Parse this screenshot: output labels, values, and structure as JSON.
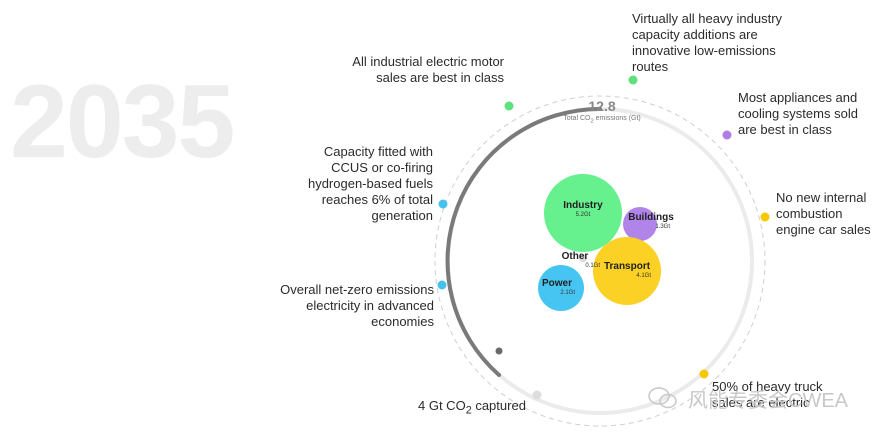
{
  "year": "2035",
  "total": {
    "value": "12.8",
    "caption_pre": "Total CO",
    "caption_sub": "2",
    "caption_post": " emissions (Gt)"
  },
  "milestones": [
    {
      "id": "heavy-industry",
      "text": "Virtually all heavy industry capacity additions are innovative low-emissions routes",
      "color": "#5ee07c"
    },
    {
      "id": "appliances",
      "text": "Most appliances and cooling systems sold are best in class",
      "color": "#b07de8"
    },
    {
      "id": "ice-cars",
      "text": "No new internal combustion engine car sales",
      "color": "#f5c800"
    },
    {
      "id": "heavy-truck",
      "text": "50% of heavy truck sales are electric",
      "color": "#f5c800"
    },
    {
      "id": "co2-captured",
      "text_pre": "4 Gt CO",
      "text_sub": "2",
      "text_post": " captured",
      "color": "#dddddd"
    },
    {
      "id": "net-zero-electricity",
      "text": "Overall net-zero emissions electricity in advanced economies",
      "color": "#47c1f0"
    },
    {
      "id": "ccus",
      "text": "Capacity fitted with CCUS or co-firing hydrogen-based fuels reaches 6% of total generation",
      "color": "#47c1f0"
    },
    {
      "id": "motors",
      "text": "All industrial electric motor sales are best in class",
      "color": "#5ee07c"
    }
  ],
  "sectors": [
    {
      "name": "Industry",
      "value": "5.2Gt",
      "color": "#66f08e"
    },
    {
      "name": "Buildings",
      "value": "1.3Gt",
      "color": "#b184ea"
    },
    {
      "name": "Other",
      "value": "0.1Gt",
      "color": "#d9d9d9"
    },
    {
      "name": "Transport",
      "value": "4.1Gt",
      "color": "#fbd125"
    },
    {
      "name": "Power",
      "value": "2.1Gt",
      "color": "#47c5f2"
    }
  ],
  "watermark": "风能专委会CWEA"
}
